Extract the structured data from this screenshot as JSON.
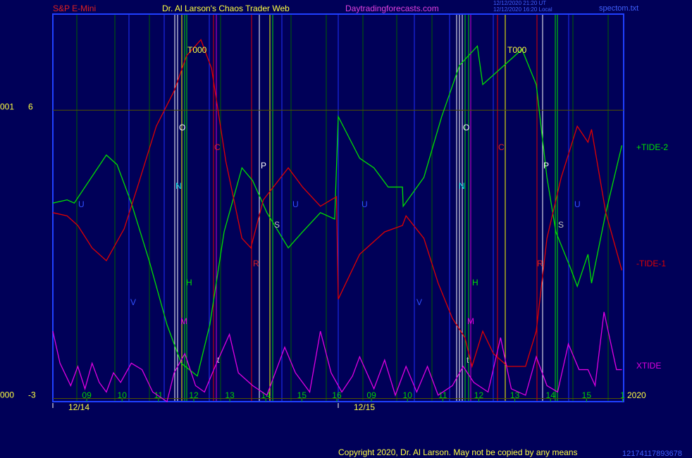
{
  "chart_data": {
    "type": "line",
    "header": [
      "S&P E-Mini",
      "Dr. Al Larson's Chaos Trader Web",
      "Daytradingforecasts.com"
    ],
    "timestamps": [
      "12/12/2020 21:20 UT",
      "12/12/2020 16:20 Local"
    ],
    "file_name": "spectom.txt",
    "copyright": "Copyright 2020, Dr. Al Larson. May not be copied by any means",
    "footer_code": "12174117893678",
    "year": "2020",
    "left_labels": [
      "001",
      "000"
    ],
    "annotations": [
      "T000",
      "T000",
      "O",
      "O",
      "N",
      "N",
      "C",
      "C",
      "P",
      "P",
      "S",
      "S",
      "U",
      "U",
      "U",
      "U",
      "V",
      "V",
      "H",
      "H",
      "M",
      "M",
      "R",
      "R",
      "t",
      "t"
    ],
    "xlim": [
      0,
      16
    ],
    "ylim": [
      -3.1,
      9
    ],
    "yticks": [
      6,
      -3
    ],
    "xticks": [
      {
        "value": 0.95,
        "label": "09"
      },
      {
        "value": 1.94,
        "label": "10"
      },
      {
        "value": 2.96,
        "label": "11"
      },
      {
        "value": 3.95,
        "label": "12"
      },
      {
        "value": 4.96,
        "label": "13"
      },
      {
        "value": 5.97,
        "label": "14"
      },
      {
        "value": 6.98,
        "label": "15"
      },
      {
        "value": 7.96,
        "label": "16"
      },
      {
        "value": 8.93,
        "label": "09"
      },
      {
        "value": 9.94,
        "label": "10"
      },
      {
        "value": 10.93,
        "label": "11"
      },
      {
        "value": 11.94,
        "label": "12"
      },
      {
        "value": 12.95,
        "label": "13"
      },
      {
        "value": 13.95,
        "label": "14"
      },
      {
        "value": 14.96,
        "label": "15"
      },
      {
        "value": 15.97,
        "label": "1"
      }
    ],
    "date_ticks": [
      {
        "value": 0,
        "label": "12/14"
      },
      {
        "value": 8.0,
        "label": "12/15"
      }
    ],
    "series": [
      {
        "name": "+TIDE-2",
        "color": "#00e000",
        "x": [
          0,
          0.4,
          0.6,
          0.9,
          1.5,
          1.8,
          2.2,
          2.7,
          3.2,
          3.6,
          4.05,
          4.4,
          4.8,
          5.3,
          5.6,
          6.0,
          6.6,
          7.0,
          7.5,
          7.9,
          8.0,
          8.6,
          9.0,
          9.4,
          9.8,
          9.82,
          10.4,
          10.9,
          11.4,
          11.9,
          12.05,
          12.35,
          13.15,
          13.55,
          13.85,
          14.1,
          14.5,
          14.7,
          15.0,
          15.1,
          15.5,
          15.95
        ],
        "values": [
          3.1,
          3.2,
          3.1,
          3.6,
          4.6,
          4.3,
          3.1,
          1.3,
          -0.7,
          -1.9,
          -2.3,
          -0.7,
          2.2,
          4.2,
          3.8,
          2.8,
          1.7,
          2.2,
          2.8,
          2.6,
          5.8,
          4.5,
          4.2,
          3.6,
          3.6,
          3.0,
          3.9,
          5.8,
          7.4,
          8.0,
          6.8,
          7.1,
          7.9,
          6.8,
          3.9,
          2.2,
          1.1,
          0.5,
          1.5,
          0.6,
          2.8,
          4.9
        ]
      },
      {
        "name": "-TIDE-1",
        "color": "#e00000",
        "x": [
          0,
          0.4,
          0.7,
          1.1,
          1.5,
          2.0,
          2.4,
          2.9,
          3.4,
          3.75,
          4.15,
          4.45,
          4.85,
          5.3,
          5.55,
          5.9,
          6.6,
          7.0,
          7.5,
          7.95,
          8.0,
          8.6,
          9.3,
          9.8,
          9.9,
          10.4,
          10.8,
          11.2,
          11.55,
          11.75,
          12.05,
          12.35,
          12.75,
          13.25,
          13.55,
          13.85,
          14.25,
          14.7,
          15.0,
          15.1,
          15.5,
          15.95
        ],
        "values": [
          2.8,
          2.7,
          2.4,
          1.7,
          1.3,
          2.3,
          3.7,
          5.5,
          6.6,
          7.7,
          8.2,
          7.3,
          4.4,
          2.0,
          1.7,
          3.2,
          4.2,
          3.6,
          3.0,
          3.3,
          0.1,
          1.5,
          2.2,
          2.4,
          2.7,
          2.0,
          0.6,
          -0.5,
          -1.1,
          -2.0,
          -0.9,
          -1.6,
          -2.0,
          -2.0,
          -0.9,
          2.0,
          3.9,
          5.5,
          5.0,
          5.4,
          2.8,
          1.0
        ]
      },
      {
        "name": "XTIDE",
        "color": "#e000e0",
        "x": [
          0,
          0.2,
          0.5,
          0.7,
          0.9,
          1.1,
          1.3,
          1.5,
          1.7,
          1.9,
          2.2,
          2.5,
          2.8,
          3.2,
          3.4,
          3.7,
          4.0,
          4.25,
          4.55,
          4.95,
          5.2,
          5.6,
          6.0,
          6.5,
          6.8,
          7.2,
          7.5,
          7.8,
          8.1,
          8.4,
          8.6,
          9.0,
          9.3,
          9.6,
          9.9,
          10.2,
          10.5,
          10.8,
          11.2,
          11.5,
          11.8,
          12.2,
          12.55,
          12.85,
          13.25,
          13.55,
          13.85,
          14.15,
          14.45,
          14.75,
          15.0,
          15.2,
          15.45,
          15.8,
          15.95
        ],
        "values": [
          -0.9,
          -1.9,
          -2.6,
          -2.0,
          -2.7,
          -1.9,
          -2.5,
          -2.8,
          -2.2,
          -2.5,
          -1.9,
          -2.1,
          -2.8,
          -3.1,
          -2.2,
          -1.6,
          -2.6,
          -2.8,
          -2.0,
          -1.0,
          -2.2,
          -2.6,
          -2.9,
          -1.4,
          -2.2,
          -2.8,
          -0.9,
          -2.2,
          -2.8,
          -2.3,
          -1.7,
          -2.7,
          -1.8,
          -2.9,
          -2.0,
          -2.8,
          -2.0,
          -2.9,
          -2.6,
          -2.0,
          -2.5,
          -2.8,
          -1.1,
          -2.7,
          -2.9,
          -1.7,
          -2.6,
          -2.8,
          -1.3,
          -2.1,
          -2.1,
          -2.6,
          -0.3,
          -2.1,
          -2.1
        ]
      }
    ]
  }
}
